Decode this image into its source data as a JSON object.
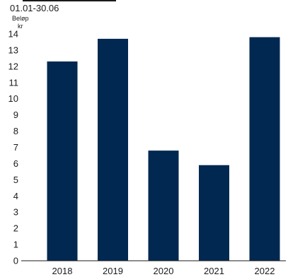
{
  "chart_data": {
    "type": "bar",
    "subtitle": "01.01-30.06",
    "ylabel": "Beløp",
    "yunit": "kr",
    "categories": [
      "2018",
      "2019",
      "2020",
      "2021",
      "2022"
    ],
    "values": [
      12.3,
      13.7,
      6.8,
      5.9,
      13.8
    ],
    "ylim": [
      0,
      14
    ],
    "yticks": [
      0,
      1,
      2,
      3,
      4,
      5,
      6,
      7,
      8,
      9,
      10,
      11,
      12,
      13,
      14
    ],
    "bar_color": "#002850",
    "grid": false
  }
}
